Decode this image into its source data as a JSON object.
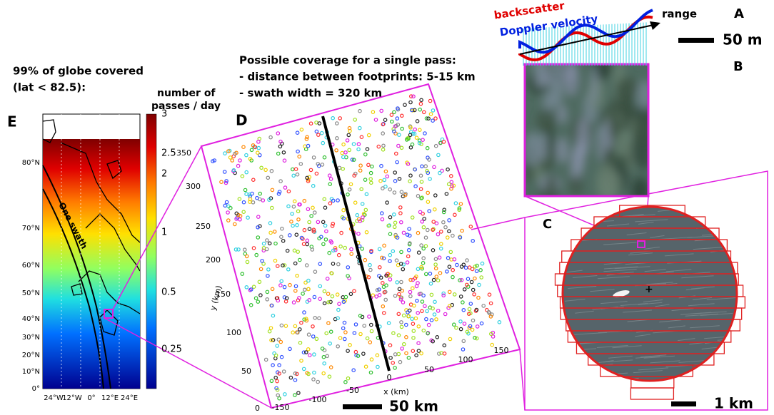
{
  "panel_e": {
    "label": "E",
    "heading": [
      "99% of globe covered",
      "(lat < 82.5):"
    ],
    "colorbar_title": [
      "number of",
      "passes / day"
    ],
    "colorbar_ticks": [
      "3",
      "2.5",
      "2",
      "1",
      "0.5",
      "0.25"
    ],
    "lat_labels": [
      "80°N",
      "70°N",
      "60°N",
      "50°N",
      "40°N",
      "30°N",
      "20°N",
      "10°N",
      "0°"
    ],
    "lon_labels": [
      "24°W",
      "12°W",
      "0°",
      "12°E",
      "24°E"
    ],
    "swath_label": "One swath"
  },
  "panel_d": {
    "label": "D",
    "heading": [
      "Possible coverage for a single pass:",
      "- distance between footprints: 5-15 km",
      "- swath width = 320 km"
    ],
    "y_axis_label": "y (km)",
    "x_axis_label": "x (km)",
    "y_ticks": [
      "350",
      "300",
      "250",
      "200",
      "150",
      "100",
      "50",
      "0"
    ],
    "x_ticks": [
      "-150",
      "-100",
      "-50",
      "0",
      "50",
      "100",
      "150"
    ],
    "scale_bar": "50 km"
  },
  "panel_a": {
    "label": "A",
    "backscatter": "backscatter",
    "doppler": "Doppler velocity",
    "range": "range",
    "scale_bar": "50 m"
  },
  "panel_b": {
    "label": "B"
  },
  "panel_c": {
    "label": "C",
    "scale_bar": "1 km"
  }
}
